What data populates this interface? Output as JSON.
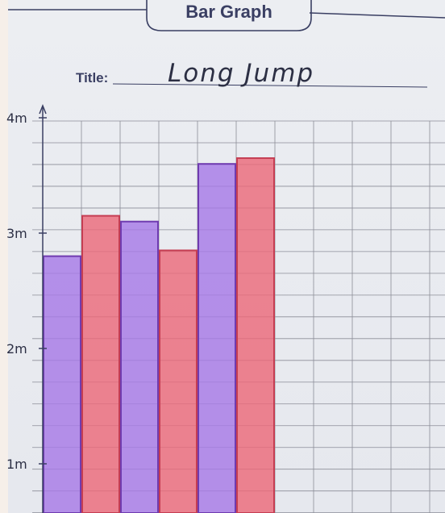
{
  "header": {
    "heading": "Bar Graph",
    "title_label": "Title:"
  },
  "colors": {
    "purple": "#a77ae6",
    "purple_edge": "#6f3bb0",
    "red": "#ec6a7a",
    "red_edge": "#c53d52",
    "grid": "#8b8d97",
    "ink": "#3a3f63"
  },
  "chart_data": {
    "type": "bar",
    "title": "Long Jump",
    "xlabel": "",
    "ylabel": "",
    "ylim": [
      0,
      4
    ],
    "y_ticks": [
      {
        "value": 1,
        "label": "1m"
      },
      {
        "value": 2,
        "label": "2m"
      },
      {
        "value": 3,
        "label": "3m"
      },
      {
        "value": 4,
        "label": "4m"
      }
    ],
    "grid": true,
    "values": [
      2.8,
      3.15,
      3.1,
      2.85,
      3.6,
      3.65
    ],
    "bar_colors": [
      "purple",
      "red",
      "purple",
      "red",
      "purple",
      "red"
    ]
  }
}
